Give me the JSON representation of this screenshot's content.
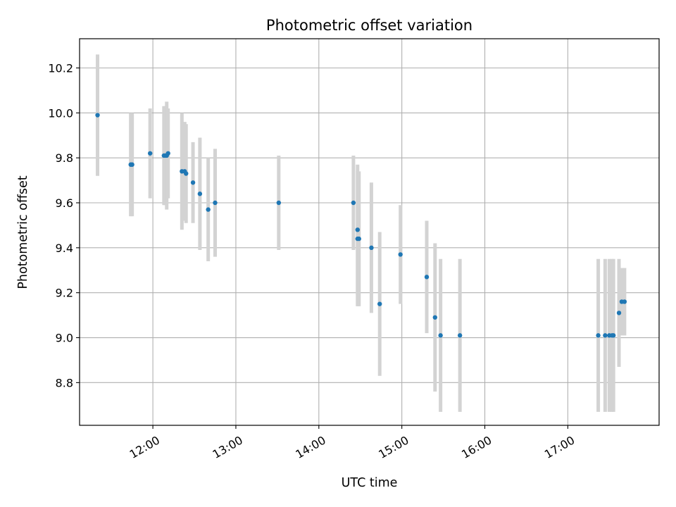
{
  "chart_data": {
    "type": "scatter",
    "title": "Photometric offset variation",
    "xlabel": "UTC time",
    "ylabel": "Photometric offset",
    "x_unit": "UTC hh:mm",
    "xlim": [
      "11:07",
      "18:06"
    ],
    "ylim": [
      8.61,
      10.33
    ],
    "x_ticks": [
      "12:00",
      "13:00",
      "14:00",
      "15:00",
      "16:00",
      "17:00"
    ],
    "y_ticks": [
      8.8,
      9.0,
      9.2,
      9.4,
      9.6,
      9.8,
      10.0,
      10.2
    ],
    "grid": true,
    "legend": "none",
    "colors": {
      "point": "#1f77b4",
      "errorbar": "#d3d3d3",
      "grid": "#b0b0b0",
      "axis": "#000000"
    },
    "series": [
      {
        "points": [
          {
            "x": "11:20",
            "y": 9.99,
            "err": 0.27
          },
          {
            "x": "11:44",
            "y": 9.77,
            "err": 0.23
          },
          {
            "x": "11:45",
            "y": 9.77,
            "err": 0.23
          },
          {
            "x": "11:58",
            "y": 9.82,
            "err": 0.2
          },
          {
            "x": "12:08",
            "y": 9.81,
            "err": 0.22
          },
          {
            "x": "12:09",
            "y": 9.81,
            "err": 0.22
          },
          {
            "x": "12:10",
            "y": 9.81,
            "err": 0.24
          },
          {
            "x": "12:11",
            "y": 9.82,
            "err": 0.2
          },
          {
            "x": "12:21",
            "y": 9.74,
            "err": 0.26
          },
          {
            "x": "12:23",
            "y": 9.74,
            "err": 0.22
          },
          {
            "x": "12:24",
            "y": 9.73,
            "err": 0.22
          },
          {
            "x": "12:29",
            "y": 9.69,
            "err": 0.18
          },
          {
            "x": "12:34",
            "y": 9.64,
            "err": 0.25
          },
          {
            "x": "12:40",
            "y": 9.57,
            "err": 0.23
          },
          {
            "x": "12:45",
            "y": 9.6,
            "err": 0.24
          },
          {
            "x": "13:31",
            "y": 9.6,
            "err": 0.21
          },
          {
            "x": "14:25",
            "y": 9.6,
            "err": 0.21
          },
          {
            "x": "14:28",
            "y": 9.48,
            "err": 0.29
          },
          {
            "x": "14:28",
            "y": 9.44,
            "err": 0.3
          },
          {
            "x": "14:29",
            "y": 9.44,
            "err": 0.3
          },
          {
            "x": "14:38",
            "y": 9.4,
            "err": 0.29
          },
          {
            "x": "14:44",
            "y": 9.15,
            "err": 0.32
          },
          {
            "x": "14:59",
            "y": 9.37,
            "err": 0.22
          },
          {
            "x": "15:18",
            "y": 9.27,
            "err": 0.25
          },
          {
            "x": "15:24",
            "y": 9.09,
            "err": 0.33
          },
          {
            "x": "15:28",
            "y": 9.01,
            "err": 0.34
          },
          {
            "x": "15:42",
            "y": 9.01,
            "err": 0.34
          },
          {
            "x": "17:22",
            "y": 9.01,
            "err": 0.34
          },
          {
            "x": "17:27",
            "y": 9.01,
            "err": 0.34
          },
          {
            "x": "17:30",
            "y": 9.01,
            "err": 0.34
          },
          {
            "x": "17:32",
            "y": 9.01,
            "err": 0.34
          },
          {
            "x": "17:33",
            "y": 9.01,
            "err": 0.34
          },
          {
            "x": "17:37",
            "y": 9.11,
            "err": 0.24
          },
          {
            "x": "17:39",
            "y": 9.16,
            "err": 0.15
          },
          {
            "x": "17:41",
            "y": 9.16,
            "err": 0.15
          }
        ]
      }
    ]
  }
}
